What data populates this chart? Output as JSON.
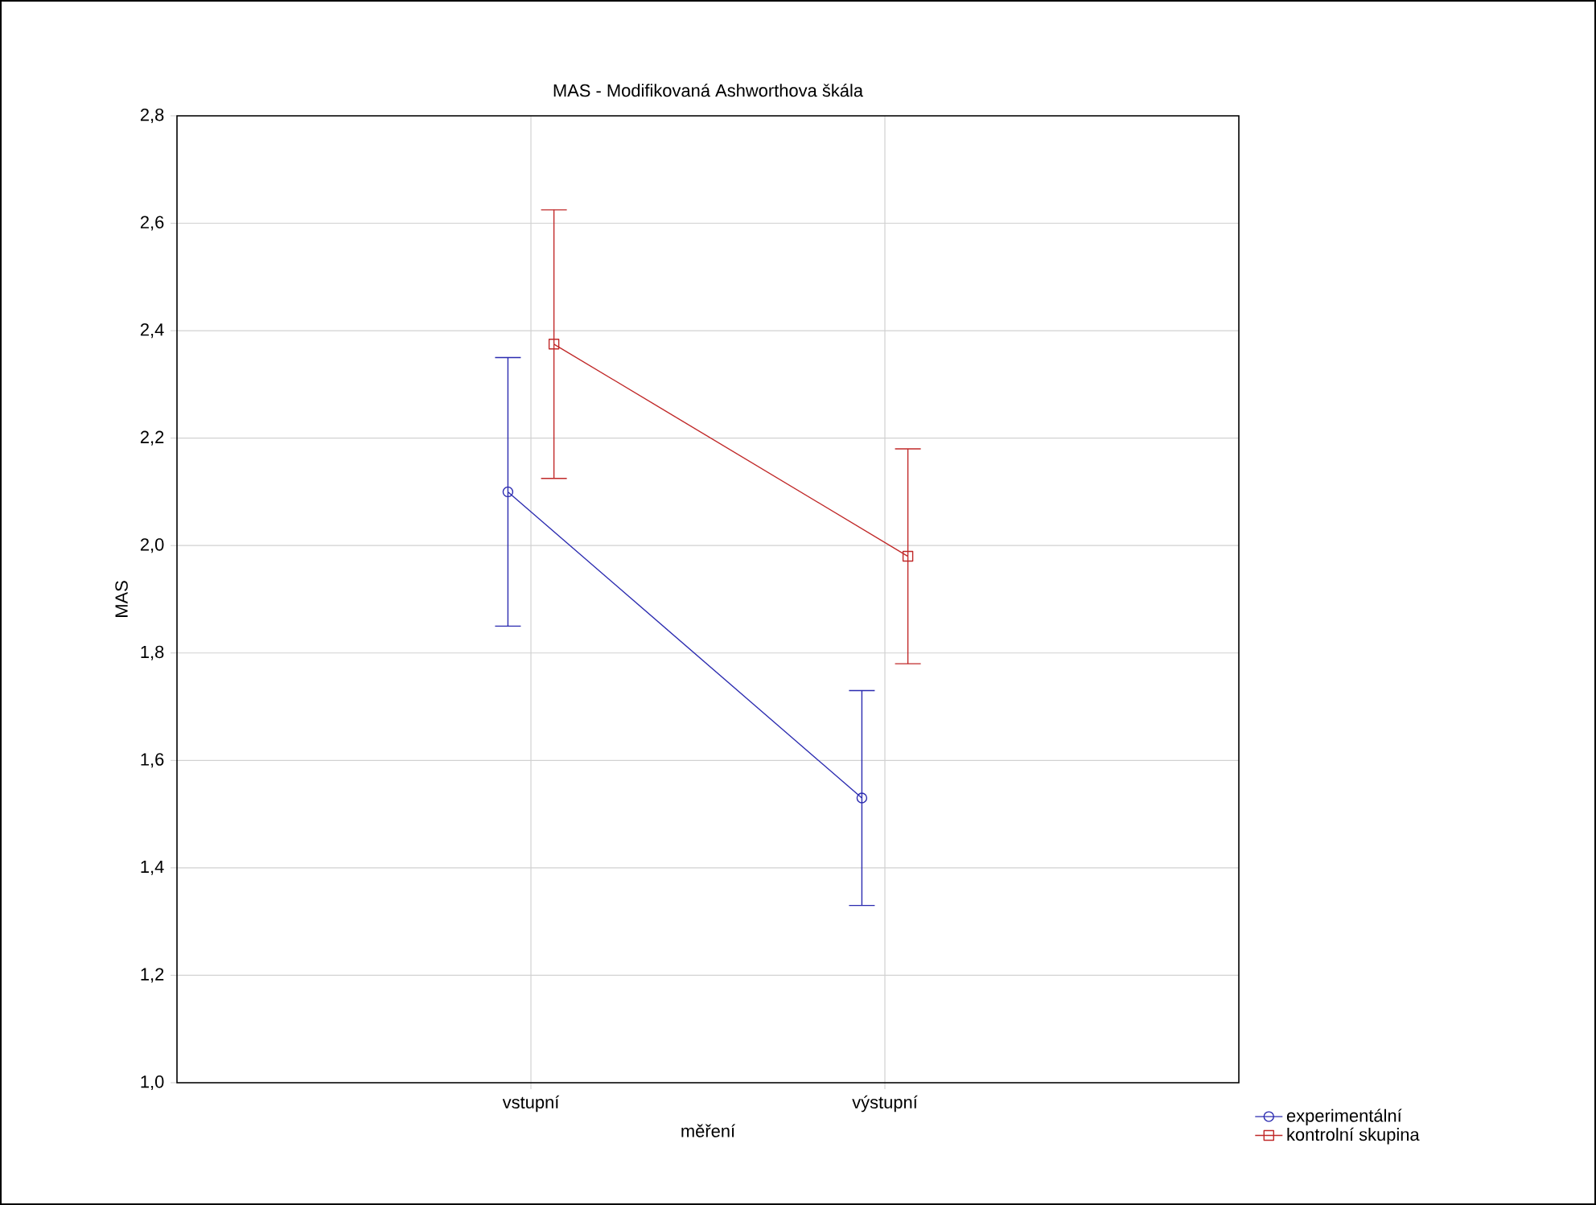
{
  "chart_data": {
    "type": "line",
    "title": "MAS - Modifikovaná Ashworthova škála",
    "xlabel": "měření",
    "ylabel": "MAS",
    "categories": [
      "vstupní",
      "výstupní"
    ],
    "series": [
      {
        "name": "experimentální",
        "color": "#2b2bb0",
        "marker": "circle",
        "values": [
          2.1,
          1.53
        ],
        "errors": [
          0.25,
          0.2
        ]
      },
      {
        "name": "kontrolní skupina",
        "color": "#c02828",
        "marker": "square",
        "values": [
          2.375,
          1.98
        ],
        "errors": [
          0.25,
          0.2
        ]
      }
    ],
    "ylim": [
      1.0,
      2.8
    ],
    "yticks": [
      {
        "value": 1.0,
        "label": "1,0"
      },
      {
        "value": 1.2,
        "label": "1,2"
      },
      {
        "value": 1.4,
        "label": "1,4"
      },
      {
        "value": 1.6,
        "label": "1,6"
      },
      {
        "value": 1.8,
        "label": "1,8"
      },
      {
        "value": 2.0,
        "label": "2,0"
      },
      {
        "value": 2.2,
        "label": "2,2"
      },
      {
        "value": 2.4,
        "label": "2,4"
      },
      {
        "value": 2.6,
        "label": "2,6"
      },
      {
        "value": 2.8,
        "label": "2,8"
      }
    ],
    "grid": true,
    "legend": "bottom right",
    "line_style": "solid"
  }
}
